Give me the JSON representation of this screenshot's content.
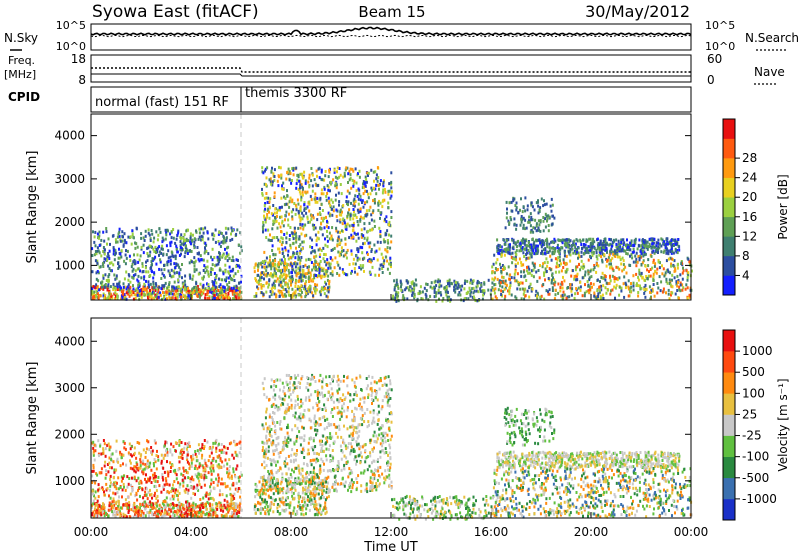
{
  "header": {
    "station": "Syowa East (fitACF)",
    "beam": "Beam 15",
    "date": "30/May/2012"
  },
  "noise_panel": {
    "left_label": "N.Sky",
    "right_label": "N.Search",
    "ticks_left": [
      "10^5",
      "10^0"
    ],
    "ticks_right": [
      "10^5",
      "10^0"
    ]
  },
  "freq_panel": {
    "left_label_1": "Freq.",
    "left_label_2": "[MHz]",
    "right_label": "Nave",
    "ticks_left": [
      "18",
      "8"
    ],
    "ticks_right": [
      "60",
      "0"
    ]
  },
  "cpid": {
    "label": "CPID",
    "modes": [
      {
        "name": "normal (fast) 151 RF",
        "start_hour": 0,
        "end_hour": 6
      },
      {
        "name": "themis 3300 RF",
        "start_hour": 6,
        "end_hour": 24
      }
    ]
  },
  "chart_data": [
    {
      "type": "heatmap",
      "parameter": "Power",
      "ylabel": "Slant Range [km]",
      "ylim": [
        200,
        4500
      ],
      "yticks": [
        "1000",
        "2000",
        "3000",
        "4000"
      ],
      "colorbar_label": "Power [dB]",
      "colorbar_ticks": [
        "4",
        "8",
        "12",
        "16",
        "20",
        "24",
        "28"
      ],
      "colorbar_colors": [
        "#1420ff",
        "#2c4ea0",
        "#3f7f70",
        "#5fa055",
        "#9bd040",
        "#e8d020",
        "#ff9a10",
        "#ff5a10",
        "#e81010"
      ]
    },
    {
      "type": "heatmap",
      "parameter": "Velocity",
      "ylabel": "Slant Range [km]",
      "ylim": [
        200,
        4500
      ],
      "yticks": [
        "1000",
        "2000",
        "3000",
        "4000"
      ],
      "colorbar_label": "Velocity [m s⁻¹]",
      "colorbar_ticks": [
        "1000",
        "500",
        "100",
        "25",
        "-25",
        "-100",
        "-500",
        "-1000"
      ],
      "colorbar_colors": [
        "#1a30c8",
        "#3a70b0",
        "#2a8a40",
        "#60c040",
        "#c8c8c8",
        "#e8c040",
        "#ff8a10",
        "#ff4a10",
        "#e81010"
      ]
    }
  ],
  "x_axis": {
    "label": "Time UT",
    "ticks": [
      "00:00",
      "04:00",
      "08:00",
      "12:00",
      "16:00",
      "20:00",
      "00:00"
    ]
  }
}
